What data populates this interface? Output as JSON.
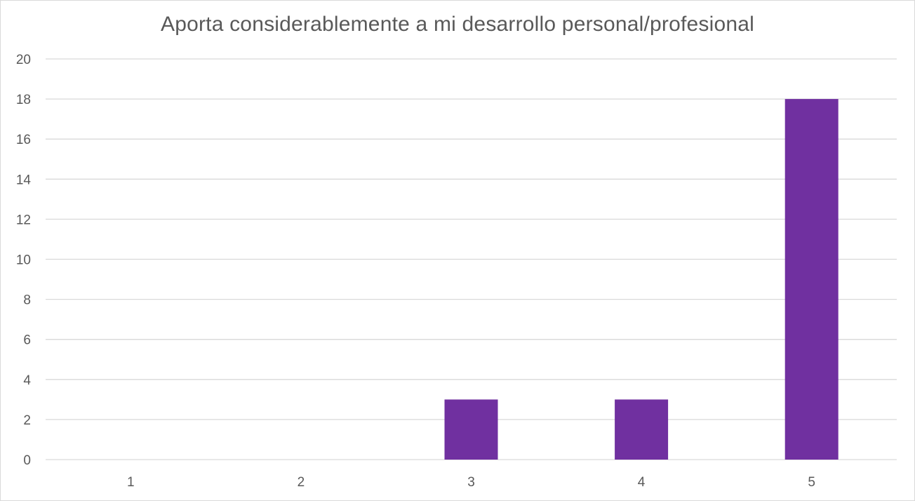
{
  "chart_data": {
    "type": "bar",
    "title": "Aporta considerablemente a mi desarrollo personal/profesional",
    "xlabel": "",
    "ylabel": "",
    "categories": [
      "1",
      "2",
      "3",
      "4",
      "5"
    ],
    "values": [
      0,
      0,
      3,
      3,
      18
    ],
    "ylim": [
      0,
      20
    ],
    "yticks": [
      0,
      2,
      4,
      6,
      8,
      10,
      12,
      14,
      16,
      18,
      20
    ],
    "grid": true,
    "legend": "none",
    "colors": {
      "bar": "#7030a0",
      "grid": "#d9d9d9",
      "text": "#595959",
      "border": "#d9d9d9"
    }
  }
}
